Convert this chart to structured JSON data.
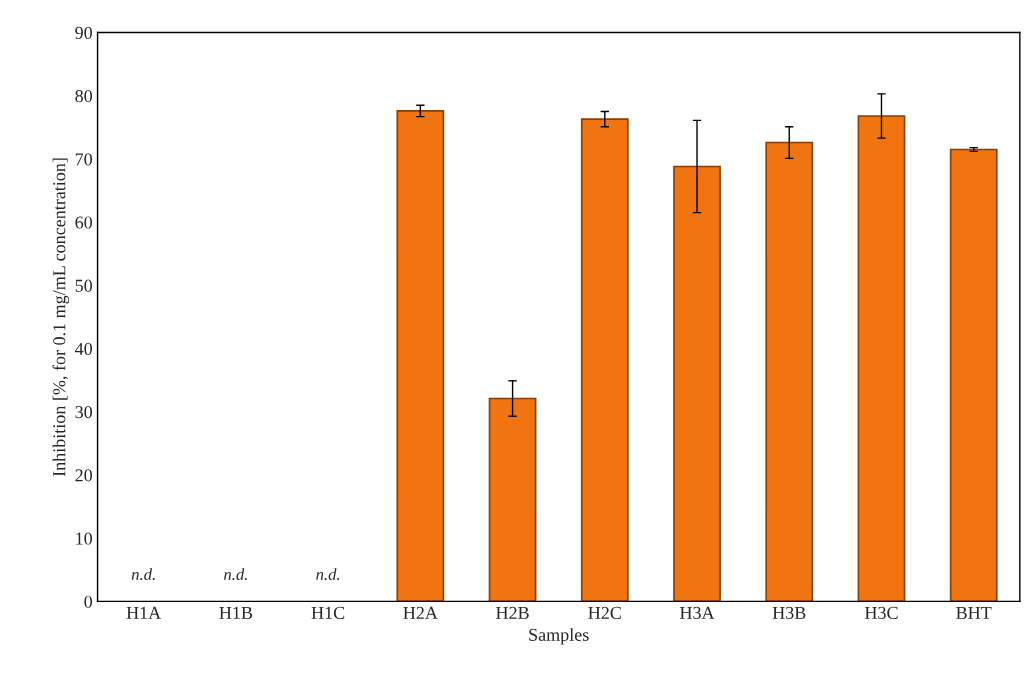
{
  "chart_data": {
    "type": "bar",
    "categories": [
      "H1A",
      "H1B",
      "H1C",
      "H2A",
      "H2B",
      "H2C",
      "H3A",
      "H3B",
      "H3C",
      "BHT"
    ],
    "values": [
      null,
      null,
      null,
      77.6,
      32.1,
      76.3,
      68.8,
      72.6,
      76.8,
      71.5
    ],
    "errors": [
      null,
      null,
      null,
      0.9,
      2.8,
      1.2,
      7.3,
      2.5,
      3.5,
      0.3
    ],
    "color": "#f07410",
    "xlabel": "Samples",
    "ylabel": "Inhibition [%, for 0.1 mg/mL concentration]",
    "ylim": [
      0,
      90
    ],
    "yticks": [
      0,
      10,
      20,
      30,
      40,
      50,
      60,
      70,
      80,
      90
    ],
    "grid": false,
    "legend": false,
    "annotations": [
      "n.d.",
      "n.d.",
      "n.d."
    ]
  }
}
